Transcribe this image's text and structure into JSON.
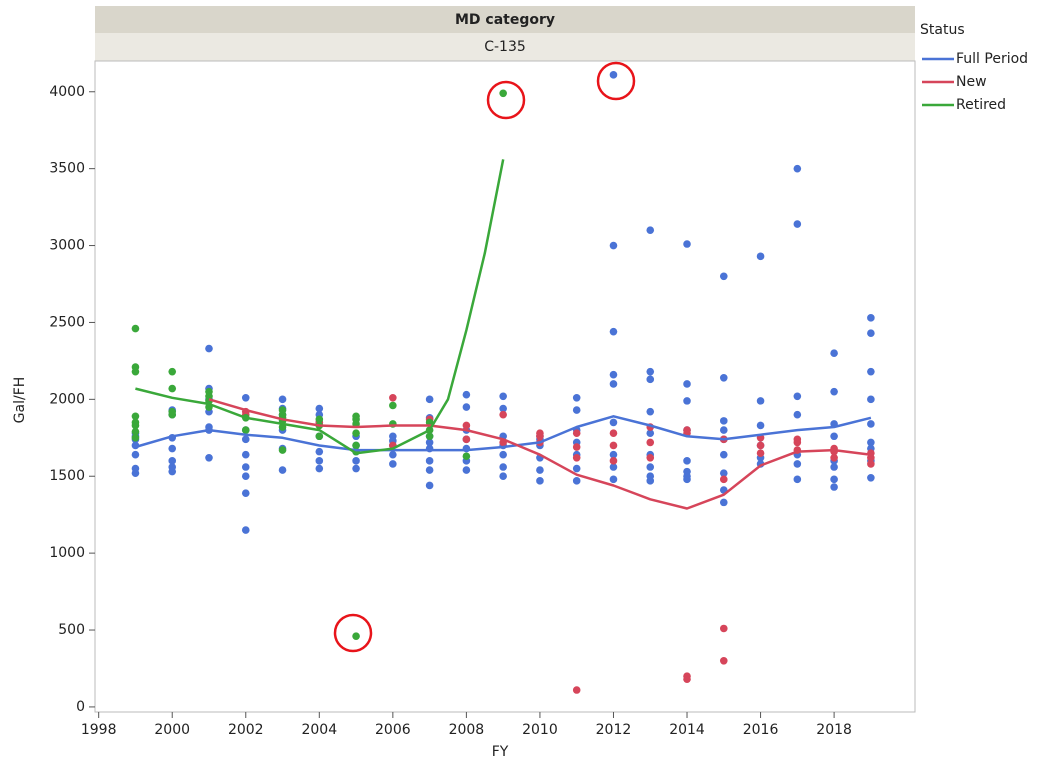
{
  "chart_data": {
    "type": "scatter",
    "group_label": "MD category",
    "group": "C-135",
    "x_label": "FY",
    "y_label": "Gal/FH",
    "legend_title": "Status",
    "xlim": [
      1997.9,
      2020.2
    ],
    "xticks": [
      1998,
      2000,
      2002,
      2004,
      2006,
      2008,
      2010,
      2012,
      2014,
      2016,
      2018
    ],
    "ylim": [
      -33,
      4200
    ],
    "yticks": [
      0,
      500,
      1000,
      1500,
      2000,
      2500,
      3000,
      3500,
      4000
    ],
    "legend": "right",
    "series": [
      {
        "name": "Full Period",
        "color": "#4a73d6",
        "x": [
          1999,
          1999,
          1999,
          1999,
          1999,
          1999,
          1999,
          2000,
          2000,
          2000,
          2000,
          2000,
          2000,
          2000,
          2001,
          2001,
          2001,
          2001,
          2001,
          2001,
          2001,
          2002,
          2002,
          2002,
          2002,
          2002,
          2002,
          2002,
          2002,
          2003,
          2003,
          2003,
          2003,
          2003,
          2003,
          2004,
          2004,
          2004,
          2004,
          2004,
          2004,
          2004,
          2005,
          2005,
          2005,
          2005,
          2005,
          2006,
          2006,
          2006,
          2006,
          2006,
          2007,
          2007,
          2007,
          2007,
          2007,
          2007,
          2007,
          2007,
          2008,
          2008,
          2008,
          2008,
          2008,
          2008,
          2008,
          2009,
          2009,
          2009,
          2009,
          2009,
          2009,
          2009,
          2010,
          2010,
          2010,
          2010,
          2010,
          2010,
          2011,
          2011,
          2011,
          2011,
          2011,
          2011,
          2011,
          2012,
          2012,
          2012,
          2012,
          2012,
          2012,
          2012,
          2012,
          2012,
          2013,
          2013,
          2013,
          2013,
          2013,
          2013,
          2013,
          2013,
          2013,
          2014,
          2014,
          2014,
          2014,
          2014,
          2014,
          2014,
          2014,
          2015,
          2015,
          2015,
          2015,
          2015,
          2015,
          2015,
          2015,
          2015,
          2016,
          2016,
          2016,
          2016,
          2016,
          2016,
          2017,
          2017,
          2017,
          2017,
          2017,
          2017,
          2017,
          2018,
          2018,
          2018,
          2018,
          2018,
          2018,
          2018,
          2018,
          2019,
          2019,
          2019,
          2019,
          2019,
          2019,
          2019,
          2019,
          2019
        ],
        "values": [
          1520,
          1550,
          1640,
          1700,
          1740,
          1760,
          1780,
          1530,
          1560,
          1600,
          1680,
          1750,
          1900,
          1930,
          1620,
          1800,
          1820,
          1920,
          2000,
          2070,
          2330,
          1150,
          1390,
          1500,
          1560,
          1640,
          1740,
          1800,
          2010,
          1540,
          1680,
          1800,
          1900,
          1940,
          2000,
          1550,
          1600,
          1660,
          1760,
          1850,
          1900,
          1940,
          1550,
          1600,
          1660,
          1700,
          1760,
          1580,
          1640,
          1700,
          1730,
          1760,
          1440,
          1540,
          1600,
          1680,
          1720,
          1760,
          1880,
          2000,
          1540,
          1600,
          1680,
          1740,
          1800,
          1950,
          2030,
          1500,
          1560,
          1640,
          1700,
          1760,
          1940,
          2020,
          1470,
          1540,
          1620,
          1700,
          1740,
          1760,
          1470,
          1550,
          1640,
          1720,
          1800,
          1930,
          2010,
          1480,
          1560,
          1640,
          1850,
          2100,
          2160,
          2440,
          3000,
          4110,
          1470,
          1500,
          1560,
          1640,
          1780,
          1920,
          2130,
          2180,
          3100,
          1480,
          1500,
          1530,
          1600,
          1800,
          1990,
          2100,
          3010,
          1330,
          1410,
          1520,
          1640,
          1740,
          1800,
          1860,
          2140,
          2800,
          1580,
          1620,
          1700,
          1830,
          1990,
          2930,
          1480,
          1580,
          1640,
          1900,
          2020,
          3140,
          3500,
          1430,
          1480,
          1560,
          1600,
          1760,
          1840,
          2050,
          2300,
          1490,
          1600,
          1680,
          1720,
          1840,
          2000,
          2180,
          2430,
          2530
        ],
        "fit": {
          "x": [
            1999,
            2000,
            2001,
            2002,
            2003,
            2004,
            2005,
            2006,
            2007,
            2008,
            2009,
            2010,
            2011,
            2012,
            2013,
            2014,
            2015,
            2016,
            2017,
            2018,
            2019
          ],
          "values": [
            1690,
            1760,
            1800,
            1770,
            1750,
            1700,
            1670,
            1670,
            1670,
            1670,
            1690,
            1720,
            1820,
            1890,
            1830,
            1760,
            1740,
            1770,
            1800,
            1820,
            1880
          ]
        }
      },
      {
        "name": "New",
        "color": "#d6455a",
        "x": [
          2002,
          2002,
          2004,
          2006,
          2006,
          2007,
          2008,
          2008,
          2009,
          2009,
          2010,
          2010,
          2010,
          2011,
          2011,
          2011,
          2011,
          2012,
          2012,
          2012,
          2013,
          2013,
          2013,
          2014,
          2014,
          2014,
          2014,
          2015,
          2015,
          2015,
          2015,
          2016,
          2016,
          2016,
          2017,
          2017,
          2017,
          2018,
          2018,
          2018,
          2019,
          2019,
          2019
        ],
        "values": [
          1900,
          1920,
          1850,
          1700,
          2010,
          1870,
          1740,
          1830,
          1720,
          1900,
          1720,
          1760,
          1780,
          110,
          1620,
          1690,
          1780,
          1600,
          1700,
          1780,
          1620,
          1720,
          1820,
          180,
          200,
          1780,
          1800,
          300,
          510,
          1480,
          1740,
          1650,
          1700,
          1750,
          1670,
          1720,
          1740,
          1620,
          1660,
          1680,
          1580,
          1620,
          1650
        ],
        "fit": {
          "x": [
            2001,
            2002,
            2003,
            2004,
            2005,
            2006,
            2007,
            2008,
            2009,
            2010,
            2011,
            2012,
            2013,
            2014,
            2015,
            2016,
            2017,
            2018,
            2019
          ],
          "values": [
            2000,
            1930,
            1870,
            1830,
            1820,
            1830,
            1830,
            1800,
            1740,
            1640,
            1510,
            1440,
            1350,
            1290,
            1380,
            1570,
            1660,
            1670,
            1640
          ]
        }
      },
      {
        "name": "Retired",
        "color": "#3aa83a",
        "x": [
          1999,
          1999,
          1999,
          1999,
          1999,
          1999,
          1999,
          1999,
          2000,
          2000,
          2000,
          2000,
          2001,
          2001,
          2001,
          2001,
          2002,
          2002,
          2003,
          2003,
          2003,
          2003,
          2003,
          2003,
          2004,
          2004,
          2004,
          2005,
          2005,
          2005,
          2005,
          2005,
          2005,
          2005,
          2006,
          2006,
          2007,
          2007,
          2007,
          2008,
          2009
        ],
        "values": [
          1750,
          1790,
          1830,
          1850,
          1890,
          2180,
          2210,
          2460,
          1900,
          1920,
          2070,
          2180,
          1950,
          1990,
          2020,
          2050,
          1800,
          1880,
          1670,
          1820,
          1860,
          1880,
          1900,
          1930,
          1760,
          1830,
          1870,
          460,
          1660,
          1700,
          1780,
          1840,
          1870,
          1890,
          1840,
          1960,
          1760,
          1800,
          1850,
          1630,
          3990
        ],
        "fit": {
          "x": [
            1999,
            2000,
            2001,
            2002,
            2003,
            2004,
            2005,
            2006,
            2007,
            2007.5,
            2008,
            2008.5,
            2009
          ],
          "values": [
            2070,
            2010,
            1970,
            1880,
            1840,
            1800,
            1650,
            1680,
            1800,
            2000,
            2450,
            2950,
            3560
          ]
        }
      }
    ]
  }
}
